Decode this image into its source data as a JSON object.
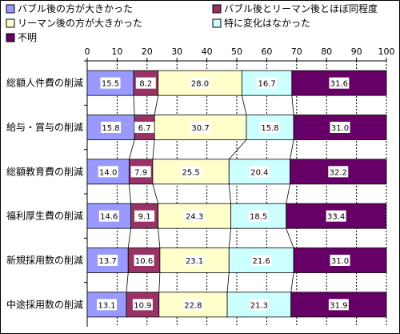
{
  "chart_data": {
    "type": "bar",
    "stacked": true,
    "orientation": "horizontal",
    "xlim": [
      0,
      100
    ],
    "x_ticks": [
      0,
      10,
      20,
      30,
      40,
      50,
      60,
      70,
      80,
      90,
      100
    ],
    "grid": true,
    "legend_position": "top",
    "categories": [
      "総額人件費の削減",
      "給与・賞与の削減",
      "総額教育費の削減",
      "福利厚生費の削減",
      "新規採用数の削減",
      "中途採用数の削減"
    ],
    "series": [
      {
        "name": "バブル後の方が大きかった",
        "color": "#9999ff",
        "values": [
          15.5,
          15.8,
          14.0,
          14.6,
          13.7,
          13.1
        ]
      },
      {
        "name": "バブル後とリーマン後とほぼ同程度",
        "color": "#993366",
        "values": [
          8.2,
          6.7,
          7.9,
          9.1,
          10.6,
          10.9
        ]
      },
      {
        "name": "リーマン後の方が大きかった",
        "color": "#ffffcc",
        "values": [
          28.0,
          30.7,
          25.5,
          24.3,
          23.1,
          22.8
        ]
      },
      {
        "name": "特に変化はなかった",
        "color": "#ccffff",
        "values": [
          16.7,
          15.8,
          20.4,
          18.5,
          21.6,
          21.3
        ]
      },
      {
        "name": "不明",
        "color": "#660066",
        "values": [
          31.6,
          31.0,
          32.2,
          33.4,
          31.0,
          31.9
        ]
      }
    ]
  }
}
